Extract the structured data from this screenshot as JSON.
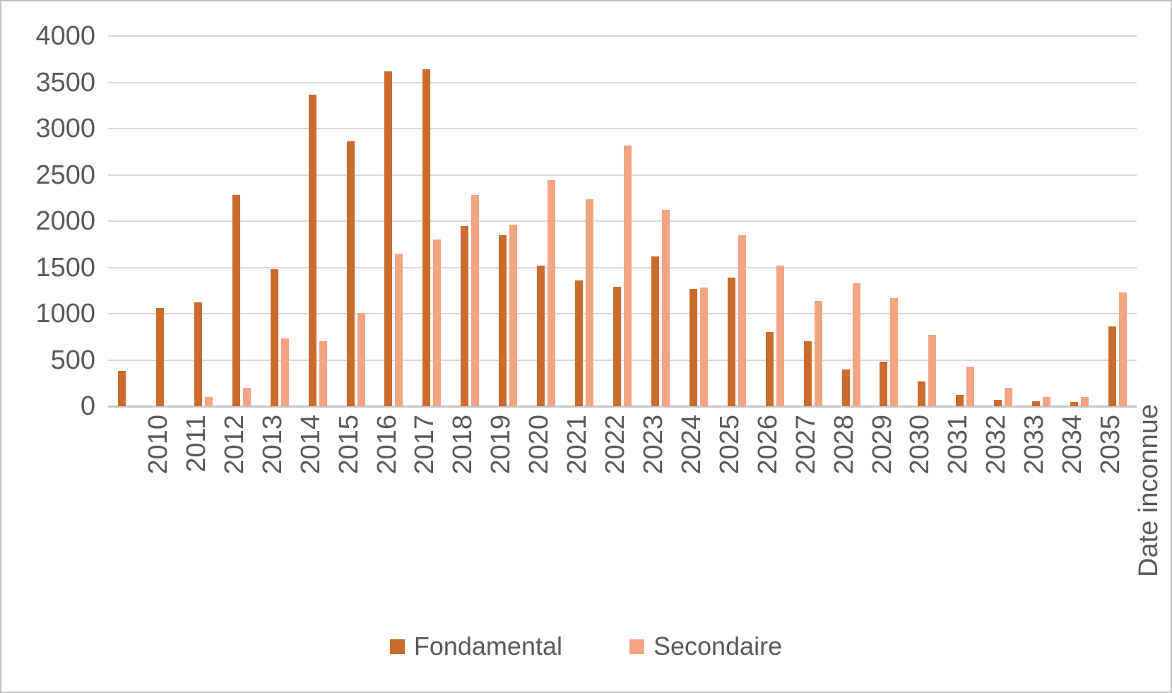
{
  "chart_data": {
    "type": "bar",
    "title": "",
    "xlabel": "",
    "ylabel": "",
    "ylim": [
      0,
      4000
    ],
    "yticks": [
      0,
      500,
      1000,
      1500,
      2000,
      2500,
      3000,
      3500,
      4000
    ],
    "grid": true,
    "legend_position": "bottom",
    "axis_text_color": "#595959",
    "gridline_color": "#d9d9d9",
    "categories": [
      "2010",
      "2011",
      "2012",
      "2013",
      "2014",
      "2015",
      "2016",
      "2017",
      "2018",
      "2019",
      "2020",
      "2021",
      "2022",
      "2023",
      "2024",
      "2025",
      "2026",
      "2027",
      "2028",
      "2029",
      "2030",
      "2031",
      "2032",
      "2033",
      "2034",
      "2035",
      "Date inconnue"
    ],
    "series": [
      {
        "name": "Fondamental",
        "color": "#ca6c2e",
        "values": [
          380,
          1060,
          1120,
          2280,
          1480,
          3370,
          2860,
          3620,
          3640,
          1950,
          1850,
          1520,
          1360,
          1290,
          1620,
          1270,
          1390,
          800,
          700,
          400,
          480,
          270,
          120,
          70,
          50,
          45,
          860
        ]
      },
      {
        "name": "Secondaire",
        "color": "#f2a583",
        "values": [
          0,
          0,
          100,
          200,
          730,
          700,
          1010,
          1650,
          1800,
          2280,
          1960,
          2440,
          2240,
          2820,
          2120,
          1280,
          1850,
          1520,
          1140,
          1330,
          1170,
          770,
          430,
          200,
          100,
          100,
          1230
        ]
      }
    ]
  }
}
